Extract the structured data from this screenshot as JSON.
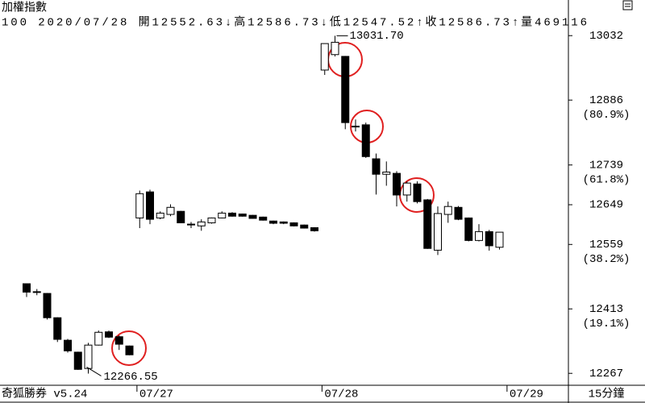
{
  "chart_data": {
    "type": "candlestick",
    "title": "加權指數",
    "subtitle": "100 2020/07/28 開12552.63↓高12586.73↓低12547.52↑收12586.73↑量469116",
    "footer": "奇狐勝券 v5.24",
    "period": "15分鐘",
    "categories": [
      null,
      null,
      null,
      null,
      null,
      null,
      null,
      null,
      null,
      null,
      null,
      "07/27",
      null,
      null,
      null,
      null,
      null,
      null,
      null,
      null,
      null,
      null,
      null,
      null,
      null,
      null,
      null,
      null,
      null,
      "07/28",
      null,
      null,
      null,
      null,
      null,
      null,
      null,
      null,
      null,
      null,
      null,
      null,
      null,
      null,
      null,
      null,
      null
    ],
    "next_label": "07/29",
    "open": [
      12470,
      12451,
      12448,
      12393,
      12342,
      12315,
      12278,
      12331,
      12361,
      12350,
      12329,
      12619,
      12678,
      12619,
      12627,
      12634,
      12605,
      12601,
      12608,
      12619,
      12630,
      12628,
      12625,
      12621,
      12612,
      12610,
      12608,
      12603,
      12597,
      12954,
      12989,
      12985,
      12825,
      12830,
      12753,
      12718,
      12720,
      12671,
      12696,
      12660,
      12546,
      12627,
      12643,
      12619,
      12568,
      12588,
      12552.63
    ],
    "high": [
      12470,
      12458,
      12449,
      12394,
      12345,
      12316,
      12336,
      12364,
      12364,
      12353,
      12330,
      12681,
      12683,
      12634,
      12650,
      12635,
      12610,
      12616,
      12620,
      12634,
      12632,
      12629,
      12626,
      12622,
      12613,
      12611,
      12609,
      12604,
      12598,
      13014,
      13031.7,
      12986,
      12842,
      12835,
      12765,
      12747,
      12725,
      12702,
      12702,
      12662,
      12645,
      12656,
      12646,
      12620,
      12605,
      12592,
      12586.73
    ],
    "low": [
      12440,
      12444,
      12389,
      12338,
      12314,
      12275,
      12266.55,
      12330,
      12347,
      12320,
      12308,
      12596,
      12605,
      12616,
      12623,
      12607,
      12596,
      12590,
      12606,
      12618,
      12622,
      12622,
      12617,
      12613,
      12605,
      12605,
      12600,
      12595,
      12588,
      12943,
      12985,
      12820,
      12815,
      12755,
      12672,
      12692,
      12645,
      12656,
      12652,
      12549,
      12535,
      12608,
      12614,
      12566,
      12566,
      12545,
      12547.52
    ],
    "close": [
      12451,
      12452,
      12393,
      12344,
      12318,
      12276,
      12331,
      12360,
      12349,
      12333,
      12309,
      12674,
      12616,
      12630,
      12643,
      12608,
      12604,
      12610,
      12619,
      12630,
      12623,
      12623,
      12618,
      12614,
      12607,
      12607,
      12601,
      12596,
      12590,
      13014,
      13017,
      12835,
      12827,
      12758,
      12718,
      12723,
      12671,
      12698,
      12656,
      12550,
      12629,
      12645,
      12616,
      12568,
      12588,
      12556,
      12586.73
    ],
    "ylim": [
      12240,
      13047
    ],
    "yticks": [
      13032,
      12886,
      12739,
      12649,
      12559,
      12413,
      12267
    ],
    "ytick_sublabels": [
      null,
      "(80.9%)",
      "(61.8%)",
      null,
      "(38.2%)",
      "(19.1%)",
      null
    ],
    "annotations": [
      {
        "value": 13031.7,
        "label": "13031.70"
      },
      {
        "value": 12266.55,
        "label": "12266.55"
      }
    ]
  }
}
